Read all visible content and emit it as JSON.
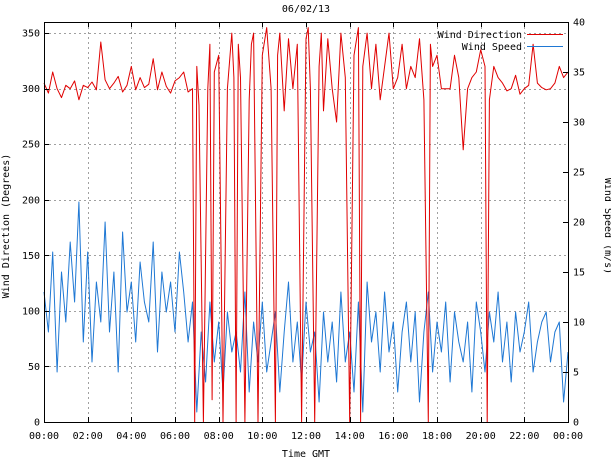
{
  "chart_data": {
    "type": "line",
    "title": "06/02/13",
    "xlabel": "Time GMT",
    "ylabel_left": "Wind Direction (Degrees)",
    "ylabel_right": "Wind Speed (m/s)",
    "x_range_hours": [
      0,
      24
    ],
    "x_ticks": [
      {
        "value": 0,
        "label": "00:00"
      },
      {
        "value": 2,
        "label": "02:00"
      },
      {
        "value": 4,
        "label": "04:00"
      },
      {
        "value": 6,
        "label": "06:00"
      },
      {
        "value": 8,
        "label": "08:00"
      },
      {
        "value": 10,
        "label": "10:00"
      },
      {
        "value": 12,
        "label": "12:00"
      },
      {
        "value": 14,
        "label": "14:00"
      },
      {
        "value": 16,
        "label": "16:00"
      },
      {
        "value": 18,
        "label": "18:00"
      },
      {
        "value": 20,
        "label": "20:00"
      },
      {
        "value": 22,
        "label": "22:00"
      },
      {
        "value": 24,
        "label": "00:00"
      }
    ],
    "y_left_range": [
      0,
      360
    ],
    "y_left_ticks": [
      0,
      50,
      100,
      150,
      200,
      250,
      300,
      350
    ],
    "y_right_range": [
      0,
      40
    ],
    "y_right_ticks": [
      0,
      5,
      10,
      15,
      20,
      25,
      30,
      35,
      40
    ],
    "grid": true,
    "legend_position": "top-right",
    "series": [
      {
        "name": "Wind Direction",
        "axis": "left",
        "color": "#e00000",
        "x": [
          0.0,
          0.2,
          0.4,
          0.6,
          0.8,
          1.0,
          1.2,
          1.4,
          1.6,
          1.8,
          2.0,
          2.2,
          2.4,
          2.6,
          2.8,
          3.0,
          3.2,
          3.4,
          3.6,
          3.8,
          4.0,
          4.2,
          4.4,
          4.6,
          4.8,
          5.0,
          5.2,
          5.4,
          5.6,
          5.8,
          6.0,
          6.2,
          6.4,
          6.6,
          6.8,
          6.9,
          7.0,
          7.1,
          7.3,
          7.5,
          7.6,
          7.7,
          7.8,
          8.0,
          8.2,
          8.4,
          8.6,
          8.7,
          8.8,
          8.9,
          9.0,
          9.2,
          9.4,
          9.5,
          9.6,
          9.8,
          10.0,
          10.2,
          10.4,
          10.6,
          10.7,
          10.8,
          11.0,
          11.2,
          11.4,
          11.6,
          11.8,
          12.0,
          12.1,
          12.2,
          12.4,
          12.6,
          12.7,
          12.8,
          13.0,
          13.2,
          13.4,
          13.6,
          13.8,
          14.0,
          14.2,
          14.4,
          14.5,
          14.6,
          14.8,
          15.0,
          15.2,
          15.4,
          15.6,
          15.8,
          16.0,
          16.2,
          16.4,
          16.6,
          16.8,
          17.0,
          17.2,
          17.4,
          17.6,
          17.7,
          17.8,
          18.0,
          18.2,
          18.4,
          18.6,
          18.8,
          19.0,
          19.2,
          19.4,
          19.6,
          19.8,
          20.0,
          20.2,
          20.3,
          20.4,
          20.6,
          20.8,
          21.0,
          21.2,
          21.4,
          21.6,
          21.8,
          22.0,
          22.2,
          22.4,
          22.6,
          22.8,
          23.0,
          23.2,
          23.4,
          23.6,
          23.8,
          24.0
        ],
        "values": [
          305,
          296,
          315,
          300,
          292,
          303,
          300,
          307,
          290,
          303,
          301,
          306,
          299,
          342,
          308,
          300,
          305,
          311,
          297,
          303,
          320,
          299,
          310,
          301,
          304,
          327,
          299,
          315,
          302,
          296,
          307,
          310,
          315,
          297,
          300,
          0,
          320,
          285,
          0,
          300,
          340,
          20,
          315,
          330,
          0,
          300,
          350,
          310,
          0,
          340,
          310,
          0,
          290,
          340,
          350,
          0,
          330,
          355,
          300,
          0,
          330,
          350,
          280,
          345,
          300,
          340,
          0,
          345,
          355,
          300,
          0,
          320,
          350,
          280,
          345,
          300,
          270,
          350,
          310,
          0,
          330,
          355,
          0,
          320,
          350,
          300,
          340,
          290,
          320,
          350,
          300,
          310,
          340,
          300,
          320,
          310,
          345,
          290,
          0,
          340,
          320,
          330,
          300,
          300,
          300,
          330,
          310,
          245,
          300,
          310,
          315,
          335,
          320,
          0,
          290,
          320,
          310,
          305,
          298,
          300,
          312,
          295,
          300,
          303,
          340,
          305,
          301,
          299,
          300,
          305,
          320,
          310,
          315
        ]
      },
      {
        "name": "Wind Speed",
        "axis": "right",
        "color": "#1f78d4",
        "x": [
          0.0,
          0.2,
          0.4,
          0.6,
          0.8,
          1.0,
          1.2,
          1.4,
          1.6,
          1.8,
          2.0,
          2.2,
          2.4,
          2.6,
          2.8,
          3.0,
          3.2,
          3.4,
          3.6,
          3.8,
          4.0,
          4.2,
          4.4,
          4.6,
          4.8,
          5.0,
          5.2,
          5.4,
          5.6,
          5.8,
          6.0,
          6.2,
          6.4,
          6.6,
          6.8,
          7.0,
          7.2,
          7.4,
          7.6,
          7.8,
          8.0,
          8.2,
          8.4,
          8.6,
          8.8,
          9.0,
          9.2,
          9.4,
          9.6,
          9.8,
          10.0,
          10.2,
          10.4,
          10.6,
          10.8,
          11.0,
          11.2,
          11.4,
          11.6,
          11.8,
          12.0,
          12.2,
          12.4,
          12.6,
          12.8,
          13.0,
          13.2,
          13.4,
          13.6,
          13.8,
          14.0,
          14.2,
          14.4,
          14.6,
          14.8,
          15.0,
          15.2,
          15.4,
          15.6,
          15.8,
          16.0,
          16.2,
          16.4,
          16.6,
          16.8,
          17.0,
          17.2,
          17.4,
          17.6,
          17.8,
          18.0,
          18.2,
          18.4,
          18.6,
          18.8,
          19.0,
          19.2,
          19.4,
          19.6,
          19.8,
          20.0,
          20.2,
          20.4,
          20.6,
          20.8,
          21.0,
          21.2,
          21.4,
          21.6,
          21.8,
          22.0,
          22.2,
          22.4,
          22.6,
          22.8,
          23.0,
          23.2,
          23.4,
          23.6,
          23.8,
          24.0
        ],
        "values": [
          13,
          9,
          17,
          5,
          15,
          10,
          18,
          12,
          22,
          8,
          17,
          6,
          14,
          10,
          20,
          9,
          15,
          5,
          19,
          11,
          14,
          8,
          16,
          12,
          10,
          18,
          7,
          15,
          11,
          14,
          9,
          17,
          13,
          8,
          12,
          1,
          9,
          4,
          12,
          6,
          10,
          3,
          11,
          7,
          9,
          5,
          13,
          3,
          10,
          6,
          12,
          5,
          8,
          11,
          3,
          9,
          14,
          6,
          10,
          4,
          12,
          7,
          9,
          2,
          11,
          6,
          10,
          4,
          13,
          6,
          9,
          3,
          12,
          1,
          14,
          8,
          11,
          5,
          13,
          7,
          10,
          3,
          9,
          12,
          6,
          11,
          2,
          9,
          13,
          5,
          10,
          7,
          12,
          4,
          11,
          8,
          6,
          10,
          3,
          12,
          9,
          5,
          11,
          8,
          13,
          6,
          10,
          4,
          11,
          7,
          9,
          12,
          5,
          8,
          10,
          11,
          6,
          9,
          10,
          2,
          7
        ]
      }
    ]
  }
}
